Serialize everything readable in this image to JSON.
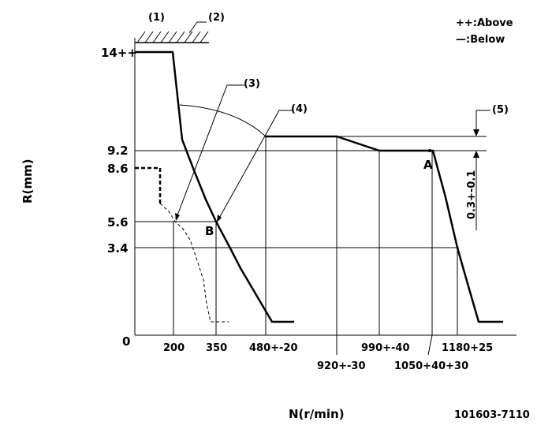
{
  "legend": {
    "above": "++:Above",
    "below": "—:Below"
  },
  "callouts": [
    "(1)",
    "(2)",
    "(3)",
    "(4)",
    "(5)"
  ],
  "axes": {
    "y_label": "R(mm)",
    "x_label": "N(r/min)",
    "origin": "0"
  },
  "y_ticks": [
    "14++",
    "9.2",
    "8.6",
    "5.6",
    "3.4"
  ],
  "x_ticks": [
    "200",
    "350",
    "480+-20",
    "920+-30",
    "990+-40",
    "1050+40+30",
    "1180+25"
  ],
  "points": {
    "a": "A",
    "b": "B"
  },
  "dimension": "0.3+-0.1",
  "part_number": "101603-7110"
}
